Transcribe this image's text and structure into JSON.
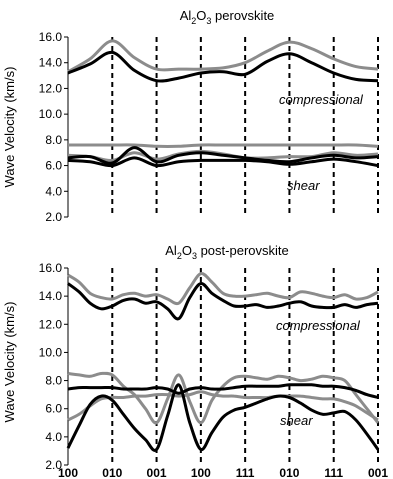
{
  "chart_data": [
    {
      "type": "line",
      "title": "Al2O3 perovskite",
      "title_parts": {
        "a": "Al",
        "sub1": "2",
        "b": "O",
        "sub2": "3",
        "c": " perovskite"
      },
      "ylabel": "Wave Velocity (km/s)",
      "ylim": [
        2.0,
        16.0
      ],
      "yticks": [
        "2.0",
        "4.0",
        "6.0",
        "8.0",
        "10.0",
        "12.0",
        "14.0",
        "16.0"
      ],
      "x_dividers": [
        1,
        2,
        3,
        4,
        5,
        6,
        7
      ],
      "annotations": [
        "compressional",
        "shear"
      ],
      "series": [
        {
          "color": "#8c8c8c",
          "x": [
            0,
            0.5,
            1,
            1.5,
            2,
            2.5,
            3,
            3.5,
            4,
            4.5,
            5,
            5.5,
            6,
            6.5,
            7
          ],
          "y": [
            13.3,
            14.3,
            15.7,
            14.4,
            13.5,
            13.5,
            13.5,
            13.6,
            14.0,
            14.9,
            15.6,
            15.1,
            14.3,
            13.7,
            13.5
          ]
        },
        {
          "color": "#000000",
          "x": [
            0,
            0.5,
            1,
            1.5,
            2,
            2.5,
            3,
            3.5,
            4,
            4.5,
            5,
            5.5,
            6,
            6.5,
            7
          ],
          "y": [
            13.2,
            13.9,
            14.8,
            13.4,
            12.6,
            12.8,
            13.2,
            13.3,
            13.1,
            14.1,
            14.7,
            14.0,
            13.2,
            12.7,
            12.6
          ]
        },
        {
          "color": "#8c8c8c",
          "x": [
            0,
            0.5,
            1,
            1.5,
            2,
            2.5,
            3,
            3.5,
            4,
            4.5,
            5,
            5.5,
            6,
            6.5,
            7
          ],
          "y": [
            7.6,
            7.6,
            7.6,
            7.6,
            7.5,
            7.5,
            7.6,
            7.6,
            7.6,
            7.6,
            7.6,
            7.6,
            7.6,
            7.6,
            7.5
          ]
        },
        {
          "color": "#8c8c8c",
          "x": [
            0,
            0.5,
            1,
            1.5,
            2,
            2.5,
            3,
            3.5,
            4,
            4.5,
            5,
            5.5,
            6,
            6.5,
            7
          ],
          "y": [
            6.8,
            6.7,
            6.4,
            7.0,
            6.5,
            6.9,
            7.1,
            6.9,
            6.6,
            6.6,
            6.7,
            6.7,
            7.0,
            6.8,
            6.9
          ]
        },
        {
          "color": "#000000",
          "x": [
            0,
            0.5,
            1,
            1.5,
            2,
            2.5,
            3,
            3.5,
            4,
            4.5,
            5,
            5.5,
            6,
            6.5,
            7
          ],
          "y": [
            6.6,
            6.7,
            6.2,
            7.4,
            6.3,
            6.8,
            7.0,
            6.8,
            6.6,
            6.4,
            6.3,
            6.6,
            6.8,
            6.6,
            6.7
          ]
        },
        {
          "color": "#000000",
          "x": [
            0,
            0.5,
            1,
            1.5,
            2,
            2.5,
            3,
            3.5,
            4,
            4.5,
            5,
            5.5,
            6,
            6.5,
            7
          ],
          "y": [
            6.4,
            6.3,
            6.0,
            6.6,
            6.0,
            6.3,
            6.4,
            6.4,
            6.4,
            6.3,
            6.1,
            6.3,
            6.5,
            6.3,
            6.0
          ]
        }
      ]
    },
    {
      "type": "line",
      "title": "Al2O3 post-perovskite",
      "title_parts": {
        "a": "Al",
        "sub1": "2",
        "b": "O",
        "sub2": "3",
        "c": " post-perovskite"
      },
      "ylabel": "Wave Velocity (km/s)",
      "ylim": [
        2.0,
        16.0
      ],
      "yticks": [
        "2.0",
        "4.0",
        "6.0",
        "8.0",
        "10.0",
        "12.0",
        "14.0",
        "16.0"
      ],
      "xticks": [
        "100",
        "010",
        "001",
        "100",
        "111",
        "010",
        "111",
        "001"
      ],
      "x_dividers": [
        1,
        2,
        3,
        4,
        5,
        6,
        7
      ],
      "annotations": [
        "compressional",
        "shear"
      ],
      "series": [
        {
          "color": "#8c8c8c",
          "x": [
            0,
            0.25,
            0.5,
            0.75,
            1,
            1.25,
            1.5,
            1.75,
            2,
            2.25,
            2.5,
            2.75,
            3,
            3.25,
            3.5,
            3.75,
            4,
            4.25,
            4.5,
            4.75,
            5,
            5.25,
            5.5,
            5.75,
            6,
            6.25,
            6.5,
            6.75,
            7
          ],
          "y": [
            15.5,
            15.0,
            14.2,
            13.9,
            13.8,
            14.1,
            14.2,
            14.0,
            14.1,
            13.8,
            13.5,
            14.6,
            15.6,
            15.0,
            14.2,
            14.0,
            14.0,
            14.1,
            14.2,
            14.0,
            13.9,
            14.3,
            14.2,
            14.0,
            13.9,
            14.1,
            13.8,
            13.9,
            14.3
          ]
        },
        {
          "color": "#000000",
          "x": [
            0,
            0.25,
            0.5,
            0.75,
            1,
            1.25,
            1.5,
            1.75,
            2,
            2.25,
            2.5,
            2.75,
            3,
            3.25,
            3.5,
            3.75,
            4,
            4.25,
            4.5,
            4.75,
            5,
            5.25,
            5.5,
            5.75,
            6,
            6.25,
            6.5,
            6.75,
            7
          ],
          "y": [
            14.9,
            14.3,
            13.5,
            13.1,
            13.3,
            13.7,
            13.8,
            13.5,
            13.6,
            13.1,
            12.4,
            13.9,
            14.9,
            14.2,
            13.7,
            13.3,
            13.3,
            13.4,
            13.2,
            13.3,
            13.5,
            13.6,
            13.3,
            13.2,
            13.2,
            13.4,
            13.2,
            13.4,
            13.5
          ]
        },
        {
          "color": "#8c8c8c",
          "x": [
            0,
            0.25,
            0.5,
            0.75,
            1,
            1.25,
            1.5,
            1.75,
            2,
            2.25,
            2.5,
            2.75,
            3,
            3.25,
            3.5,
            3.75,
            4,
            4.25,
            4.5,
            4.75,
            5,
            5.25,
            5.5,
            5.75,
            6,
            6.25,
            6.5,
            6.75,
            7
          ],
          "y": [
            8.5,
            8.4,
            8.3,
            8.5,
            8.4,
            7.6,
            7.0,
            6.0,
            5.0,
            6.7,
            8.4,
            6.5,
            5.0,
            6.6,
            7.6,
            8.2,
            8.3,
            8.2,
            8.1,
            8.3,
            8.2,
            8.0,
            8.1,
            8.3,
            8.2,
            8.0,
            7.0,
            6.0,
            5.0
          ]
        },
        {
          "color": "#8c8c8c",
          "x": [
            0,
            0.25,
            0.5,
            0.75,
            1,
            1.25,
            1.5,
            1.75,
            2,
            2.25,
            2.5,
            2.75,
            3,
            3.25,
            3.5,
            3.75,
            4,
            4.25,
            4.5,
            4.75,
            5,
            5.25,
            5.5,
            5.75,
            6,
            6.25,
            6.5,
            6.75,
            7
          ],
          "y": [
            5.2,
            5.6,
            6.2,
            6.7,
            6.8,
            6.8,
            6.9,
            6.9,
            7.0,
            7.0,
            6.9,
            7.0,
            7.2,
            7.0,
            6.9,
            6.9,
            6.8,
            6.8,
            6.8,
            6.9,
            6.9,
            6.9,
            6.8,
            6.7,
            6.7,
            6.5,
            6.2,
            5.7,
            5.2
          ]
        },
        {
          "color": "#000000",
          "x": [
            0,
            0.25,
            0.5,
            0.75,
            1,
            1.25,
            1.5,
            1.75,
            2,
            2.25,
            2.5,
            2.75,
            3,
            3.25,
            3.5,
            3.75,
            4,
            4.25,
            4.5,
            4.75,
            5,
            5.25,
            5.5,
            5.75,
            6,
            6.25,
            6.5,
            6.75,
            7
          ],
          "y": [
            7.4,
            7.5,
            7.5,
            7.5,
            7.5,
            7.4,
            7.4,
            7.4,
            7.5,
            7.4,
            7.1,
            7.4,
            7.5,
            7.4,
            7.4,
            7.5,
            7.6,
            7.6,
            7.6,
            7.6,
            7.7,
            7.7,
            7.7,
            7.6,
            7.6,
            7.5,
            7.3,
            7.0,
            6.8
          ]
        },
        {
          "color": "#000000",
          "x": [
            0,
            0.25,
            0.5,
            0.75,
            1,
            1.25,
            1.5,
            1.75,
            2,
            2.25,
            2.5,
            2.75,
            3,
            3.25,
            3.5,
            3.75,
            4,
            4.25,
            4.5,
            4.75,
            5,
            5.25,
            5.5,
            5.75,
            6,
            6.25,
            6.5,
            6.75,
            7
          ],
          "y": [
            3.2,
            4.8,
            6.3,
            6.9,
            6.6,
            5.6,
            4.6,
            3.8,
            3.1,
            5.5,
            7.7,
            5.0,
            3.1,
            4.3,
            5.4,
            5.9,
            6.1,
            6.4,
            6.7,
            6.9,
            6.8,
            6.4,
            5.9,
            5.6,
            5.7,
            5.8,
            5.2,
            4.2,
            3.1
          ]
        }
      ]
    }
  ]
}
